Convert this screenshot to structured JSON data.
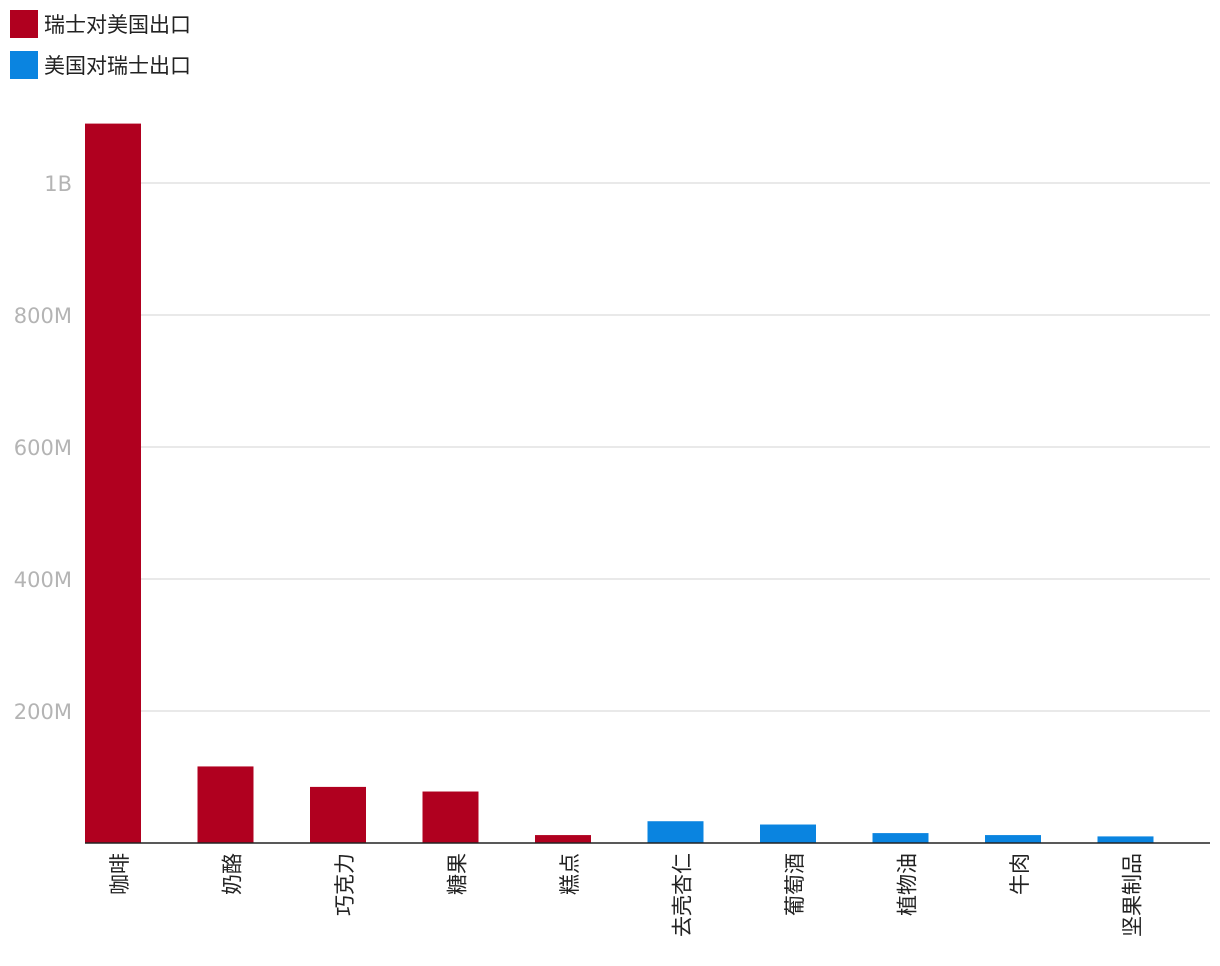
{
  "legend": {
    "items": [
      {
        "label": "瑞士对美国出口",
        "color": "#b0001f"
      },
      {
        "label": "美国对瑞士出口",
        "color": "#0a84e0"
      }
    ]
  },
  "chart_data": {
    "type": "bar",
    "categories": [
      "咖啡",
      "奶酪",
      "巧克力",
      "糖果",
      "糕点",
      "去壳杏仁",
      "葡萄酒",
      "植物油",
      "牛肉",
      "坚果制品"
    ],
    "series": [
      {
        "name": "瑞士对美国出口",
        "color": "#b0001f",
        "values": [
          1090000000,
          116000000,
          85000000,
          78000000,
          12000000,
          null,
          null,
          null,
          null,
          null
        ]
      },
      {
        "name": "美国对瑞士出口",
        "color": "#0a84e0",
        "values": [
          null,
          null,
          null,
          null,
          null,
          33000000,
          28000000,
          15000000,
          12000000,
          10000000
        ]
      }
    ],
    "y_ticks": [
      {
        "value": 1000000000,
        "label": "1B"
      },
      {
        "value": 800000000,
        "label": "800M"
      },
      {
        "value": 600000000,
        "label": "600M"
      },
      {
        "value": 400000000,
        "label": "400M"
      },
      {
        "value": 200000000,
        "label": "200M"
      }
    ],
    "ylim": [
      0,
      1090000000
    ],
    "grid": true,
    "legend_position": "top-left"
  }
}
